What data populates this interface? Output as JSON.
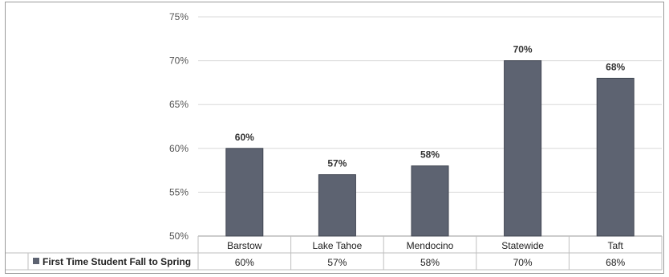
{
  "chart_data": {
    "type": "bar",
    "categories": [
      "Barstow",
      "Lake Tahoe",
      "Mendocino",
      "Statewide",
      "Taft"
    ],
    "series": [
      {
        "name": "First Time Student Fall to Spring",
        "values": [
          60,
          57,
          58,
          70,
          68
        ],
        "data_labels": [
          "60%",
          "57%",
          "58%",
          "70%",
          "68%"
        ],
        "color": "#5d6371"
      }
    ],
    "y_ticks": [
      "75%",
      "70%",
      "65%",
      "60%",
      "55%",
      "50%"
    ],
    "ylim": [
      50,
      75
    ],
    "grid": true,
    "legend": "data-table",
    "title": "",
    "xlabel": "",
    "ylabel": ""
  }
}
